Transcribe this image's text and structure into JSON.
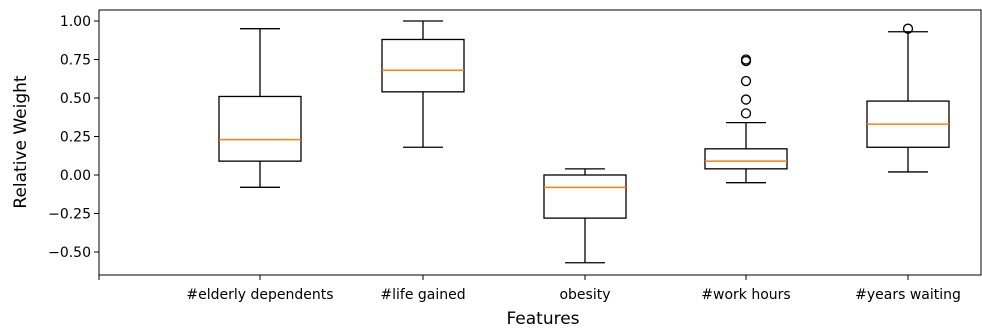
{
  "chart_data": {
    "type": "boxplot",
    "xlabel": "Features",
    "ylabel": "Relative Weight",
    "ylim": [
      -0.65,
      1.07
    ],
    "yticks": [
      -0.5,
      -0.25,
      0.0,
      0.25,
      0.5,
      0.75,
      1.0
    ],
    "ytick_labels": [
      "−0.50",
      "−0.25",
      "0.00",
      "0.25",
      "0.50",
      "0.75",
      "1.00"
    ],
    "categories": [
      "#elderly dependents",
      "#life gained",
      "obesity",
      "#work hours",
      "#years waiting"
    ],
    "boxes": [
      {
        "category": "#elderly dependents",
        "whisker_low": -0.08,
        "q1": 0.09,
        "median": 0.23,
        "q3": 0.51,
        "whisker_high": 0.95,
        "outliers": []
      },
      {
        "category": "#life gained",
        "whisker_low": 0.18,
        "q1": 0.54,
        "median": 0.68,
        "q3": 0.88,
        "whisker_high": 1.0,
        "outliers": []
      },
      {
        "category": "obesity",
        "whisker_low": -0.57,
        "q1": -0.28,
        "median": -0.08,
        "q3": 0.0,
        "whisker_high": 0.04,
        "outliers": []
      },
      {
        "category": "#work hours",
        "whisker_low": -0.05,
        "q1": 0.04,
        "median": 0.09,
        "q3": 0.17,
        "whisker_high": 0.34,
        "outliers": [
          0.4,
          0.49,
          0.61,
          0.74,
          0.75
        ]
      },
      {
        "category": "#years waiting",
        "whisker_low": 0.02,
        "q1": 0.18,
        "median": 0.33,
        "q3": 0.48,
        "whisker_high": 0.93,
        "outliers": [
          0.95
        ]
      }
    ],
    "colors": {
      "box": "#000000",
      "median": "#ff7f0e",
      "outlier": "#000000"
    },
    "grid": false,
    "legend": "none"
  }
}
